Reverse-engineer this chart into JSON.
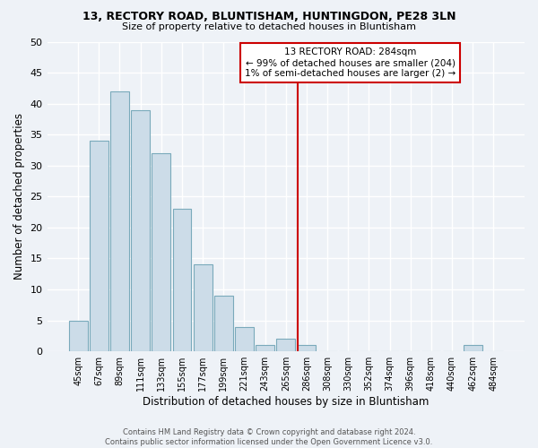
{
  "title": "13, RECTORY ROAD, BLUNTISHAM, HUNTINGDON, PE28 3LN",
  "subtitle": "Size of property relative to detached houses in Bluntisham",
  "xlabel": "Distribution of detached houses by size in Bluntisham",
  "ylabel": "Number of detached properties",
  "bin_labels": [
    "45sqm",
    "67sqm",
    "89sqm",
    "111sqm",
    "133sqm",
    "155sqm",
    "177sqm",
    "199sqm",
    "221sqm",
    "243sqm",
    "265sqm",
    "286sqm",
    "308sqm",
    "330sqm",
    "352sqm",
    "374sqm",
    "396sqm",
    "418sqm",
    "440sqm",
    "462sqm",
    "484sqm"
  ],
  "bar_heights": [
    5,
    34,
    42,
    39,
    32,
    23,
    14,
    9,
    4,
    1,
    2,
    1,
    0,
    0,
    0,
    0,
    0,
    0,
    0,
    1,
    0
  ],
  "bar_color": "#ccdce8",
  "bar_edge_color": "#7aaabb",
  "vline_color": "#cc0000",
  "ylim": [
    0,
    50
  ],
  "yticks": [
    0,
    5,
    10,
    15,
    20,
    25,
    30,
    35,
    40,
    45,
    50
  ],
  "annotation_title": "13 RECTORY ROAD: 284sqm",
  "annotation_line1": "← 99% of detached houses are smaller (204)",
  "annotation_line2": "1% of semi-detached houses are larger (2) →",
  "annotation_box_color": "#ffffff",
  "annotation_box_edge": "#cc0000",
  "footer_line1": "Contains HM Land Registry data © Crown copyright and database right 2024.",
  "footer_line2": "Contains public sector information licensed under the Open Government Licence v3.0.",
  "background_color": "#eef2f7",
  "grid_color": "#ffffff",
  "vline_bar_index": 11
}
